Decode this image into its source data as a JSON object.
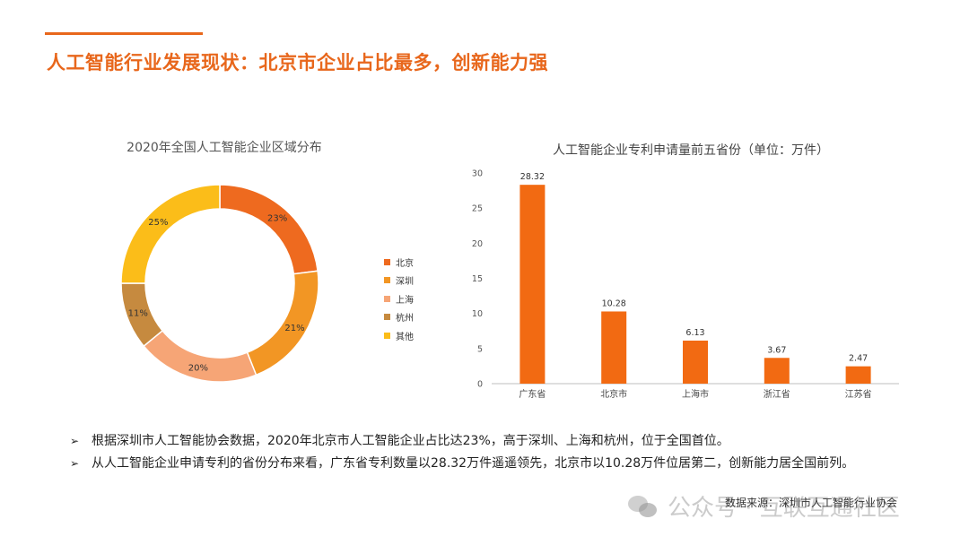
{
  "page": {
    "title": "人工智能行业发展现状：北京市企业占比最多，创新能力强"
  },
  "bullets": [
    {
      "mark": "➢",
      "text": "根据深圳市人工智能协会数据，2020年北京市人工智能企业占比达23%，高于深圳、上海和杭州，位于全国首位。"
    },
    {
      "mark": "➢",
      "text": "从人工智能企业申请专利的省份分布来看，广东省专利数量以28.32万件遥遥领先，北京市以10.28万件位居第二，创新能力居全国前列。"
    }
  ],
  "source_note": "数据来源：深圳市人工智能行业协会",
  "watermark": "公众号 · 互联互通社区",
  "chart_data": [
    {
      "type": "pie",
      "donut": true,
      "title": "2020年全国人工智能企业区域分布",
      "legend_position": "right",
      "categories": [
        "北京",
        "深圳",
        "上海",
        "杭州",
        "其他"
      ],
      "values": [
        23,
        21,
        20,
        11,
        25
      ],
      "labels": [
        "23%",
        "21%",
        "20%",
        "11%",
        "25%"
      ],
      "colors": [
        "#ee6a1f",
        "#f29624",
        "#f6a576",
        "#c68a3f",
        "#fbbd19"
      ]
    },
    {
      "type": "bar",
      "title": "人工智能企业专利申请量前五省份（单位：万件）",
      "categories": [
        "广东省",
        "北京市",
        "上海市",
        "浙江省",
        "江苏省"
      ],
      "values": [
        28.32,
        10.28,
        6.13,
        3.67,
        2.47
      ],
      "ylim": [
        0,
        30
      ],
      "yticks": [
        0,
        5,
        10,
        15,
        20,
        25,
        30
      ],
      "grid": false,
      "color": "#f26a12"
    }
  ]
}
